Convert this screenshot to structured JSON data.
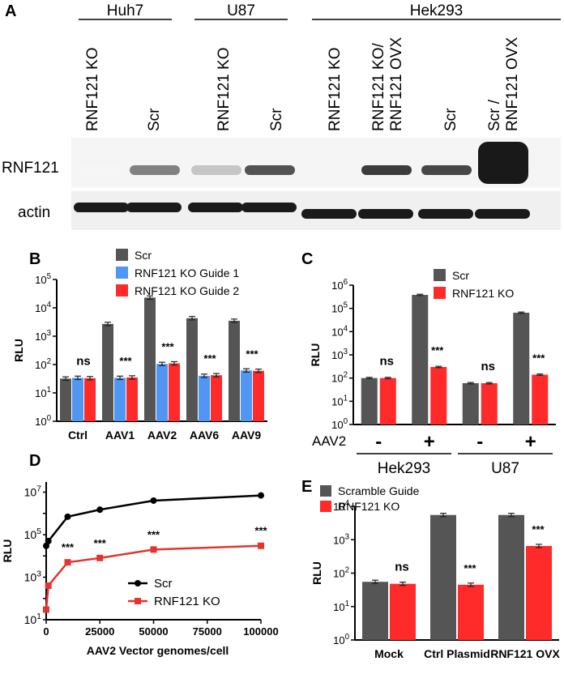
{
  "panel_a": {
    "letter": "A",
    "groups": [
      {
        "name": "Huh7",
        "lanes": [
          "RNF121 KO",
          "Scr"
        ]
      },
      {
        "name": "U87",
        "lanes": [
          "RNF121 KO",
          "Scr"
        ]
      },
      {
        "name": "Hek293",
        "lanes": [
          "RNF121 KO",
          "RNF121 KO/\nRNF121 OVX",
          "Scr",
          "Scr /\nRNF121 OVX"
        ]
      }
    ],
    "row_labels": [
      "RNF121",
      "actin"
    ],
    "band_intensity_rnf121": [
      0.02,
      0.55,
      0.25,
      0.75,
      0.03,
      0.85,
      0.8,
      1.0
    ],
    "band_intensity_actin": [
      0.9,
      0.9,
      0.9,
      0.9,
      0.9,
      0.9,
      0.9,
      0.9
    ]
  },
  "chart_data": [
    {
      "panel": "B",
      "type": "bar",
      "ylabel": "RLU",
      "scale": "log",
      "ylim": [
        1,
        100000
      ],
      "yticks": [
        "10^0",
        "10^1",
        "10^2",
        "10^3",
        "10^4",
        "10^5"
      ],
      "categories": [
        "Ctrl",
        "AAV1",
        "AAV2",
        "AAV6",
        "AAV9"
      ],
      "series": [
        {
          "name": "Scr",
          "color": "#555555",
          "values": [
            32,
            2700,
            23000,
            4300,
            3500
          ]
        },
        {
          "name": "RNF121 KO Guide 1",
          "color": "#4f97f2",
          "values": [
            34,
            34,
            105,
            40,
            62
          ]
        },
        {
          "name": "RNF121 KO Guide 2",
          "color": "#ff2a2a",
          "values": [
            33,
            35,
            110,
            42,
            60
          ]
        }
      ],
      "annotations": [
        "ns",
        "***",
        "***",
        "***",
        "***"
      ],
      "legend": "top"
    },
    {
      "panel": "C",
      "type": "bar",
      "ylabel": "RLU",
      "scale": "log",
      "ylim": [
        1,
        1000000
      ],
      "yticks": [
        "10^0",
        "10^1",
        "10^2",
        "10^3",
        "10^4",
        "10^5",
        "10^6"
      ],
      "row_label": "AAV2",
      "categories": [
        "-",
        "+",
        "-",
        "+"
      ],
      "groups": [
        "Hek293",
        "U87"
      ],
      "series": [
        {
          "name": "Scr",
          "color": "#555555",
          "values": [
            100,
            380000,
            60,
            65000
          ]
        },
        {
          "name": "RNF121 KO",
          "color": "#ff2a2a",
          "values": [
            100,
            300,
            60,
            140
          ]
        }
      ],
      "annotations": [
        "ns",
        "***",
        "ns",
        "***"
      ],
      "legend": "top"
    },
    {
      "panel": "D",
      "type": "line",
      "ylabel": "RLU",
      "xlabel": "AAV2 Vector genomes/cell",
      "scale_y": "log",
      "ylim": [
        10,
        30000000
      ],
      "xlim": [
        0,
        100000
      ],
      "xticks": [
        "0",
        "25000",
        "50000",
        "75000",
        "100000"
      ],
      "yticks": [
        "10^1",
        "10^3",
        "10^5",
        "10^7"
      ],
      "series": [
        {
          "name": "Scr",
          "color": "#000000",
          "x": [
            0,
            1000,
            10000,
            25000,
            50000,
            100000
          ],
          "y": [
            30000,
            50000,
            700000,
            1500000,
            4000000,
            7000000
          ]
        },
        {
          "name": "RNF121 KO",
          "color": "#e3342f",
          "x": [
            0,
            1000,
            10000,
            25000,
            50000,
            100000
          ],
          "y": [
            30,
            400,
            5000,
            8000,
            20000,
            30000
          ]
        }
      ],
      "annotations": [
        {
          "x": 10000,
          "text": "***"
        },
        {
          "x": 25000,
          "text": "***"
        },
        {
          "x": 50000,
          "text": "***"
        },
        {
          "x": 100000,
          "text": "***"
        }
      ],
      "legend": "bottom-right"
    },
    {
      "panel": "E",
      "type": "bar",
      "ylabel": "RLU",
      "scale": "log",
      "ylim": [
        1,
        10000
      ],
      "yticks": [
        "10^0",
        "10^1",
        "10^2",
        "10^3",
        "10^4"
      ],
      "categories": [
        "Mock",
        "Ctrl Plasmid",
        "RNF121 OVX"
      ],
      "series": [
        {
          "name": "Scramble Guide",
          "color": "#555555",
          "values": [
            55,
            5500,
            5500
          ]
        },
        {
          "name": "RNF121 KO",
          "color": "#ff2a2a",
          "values": [
            48,
            45,
            650
          ]
        }
      ],
      "annotations": [
        "ns",
        "***",
        "***"
      ],
      "legend": "top-left"
    }
  ]
}
